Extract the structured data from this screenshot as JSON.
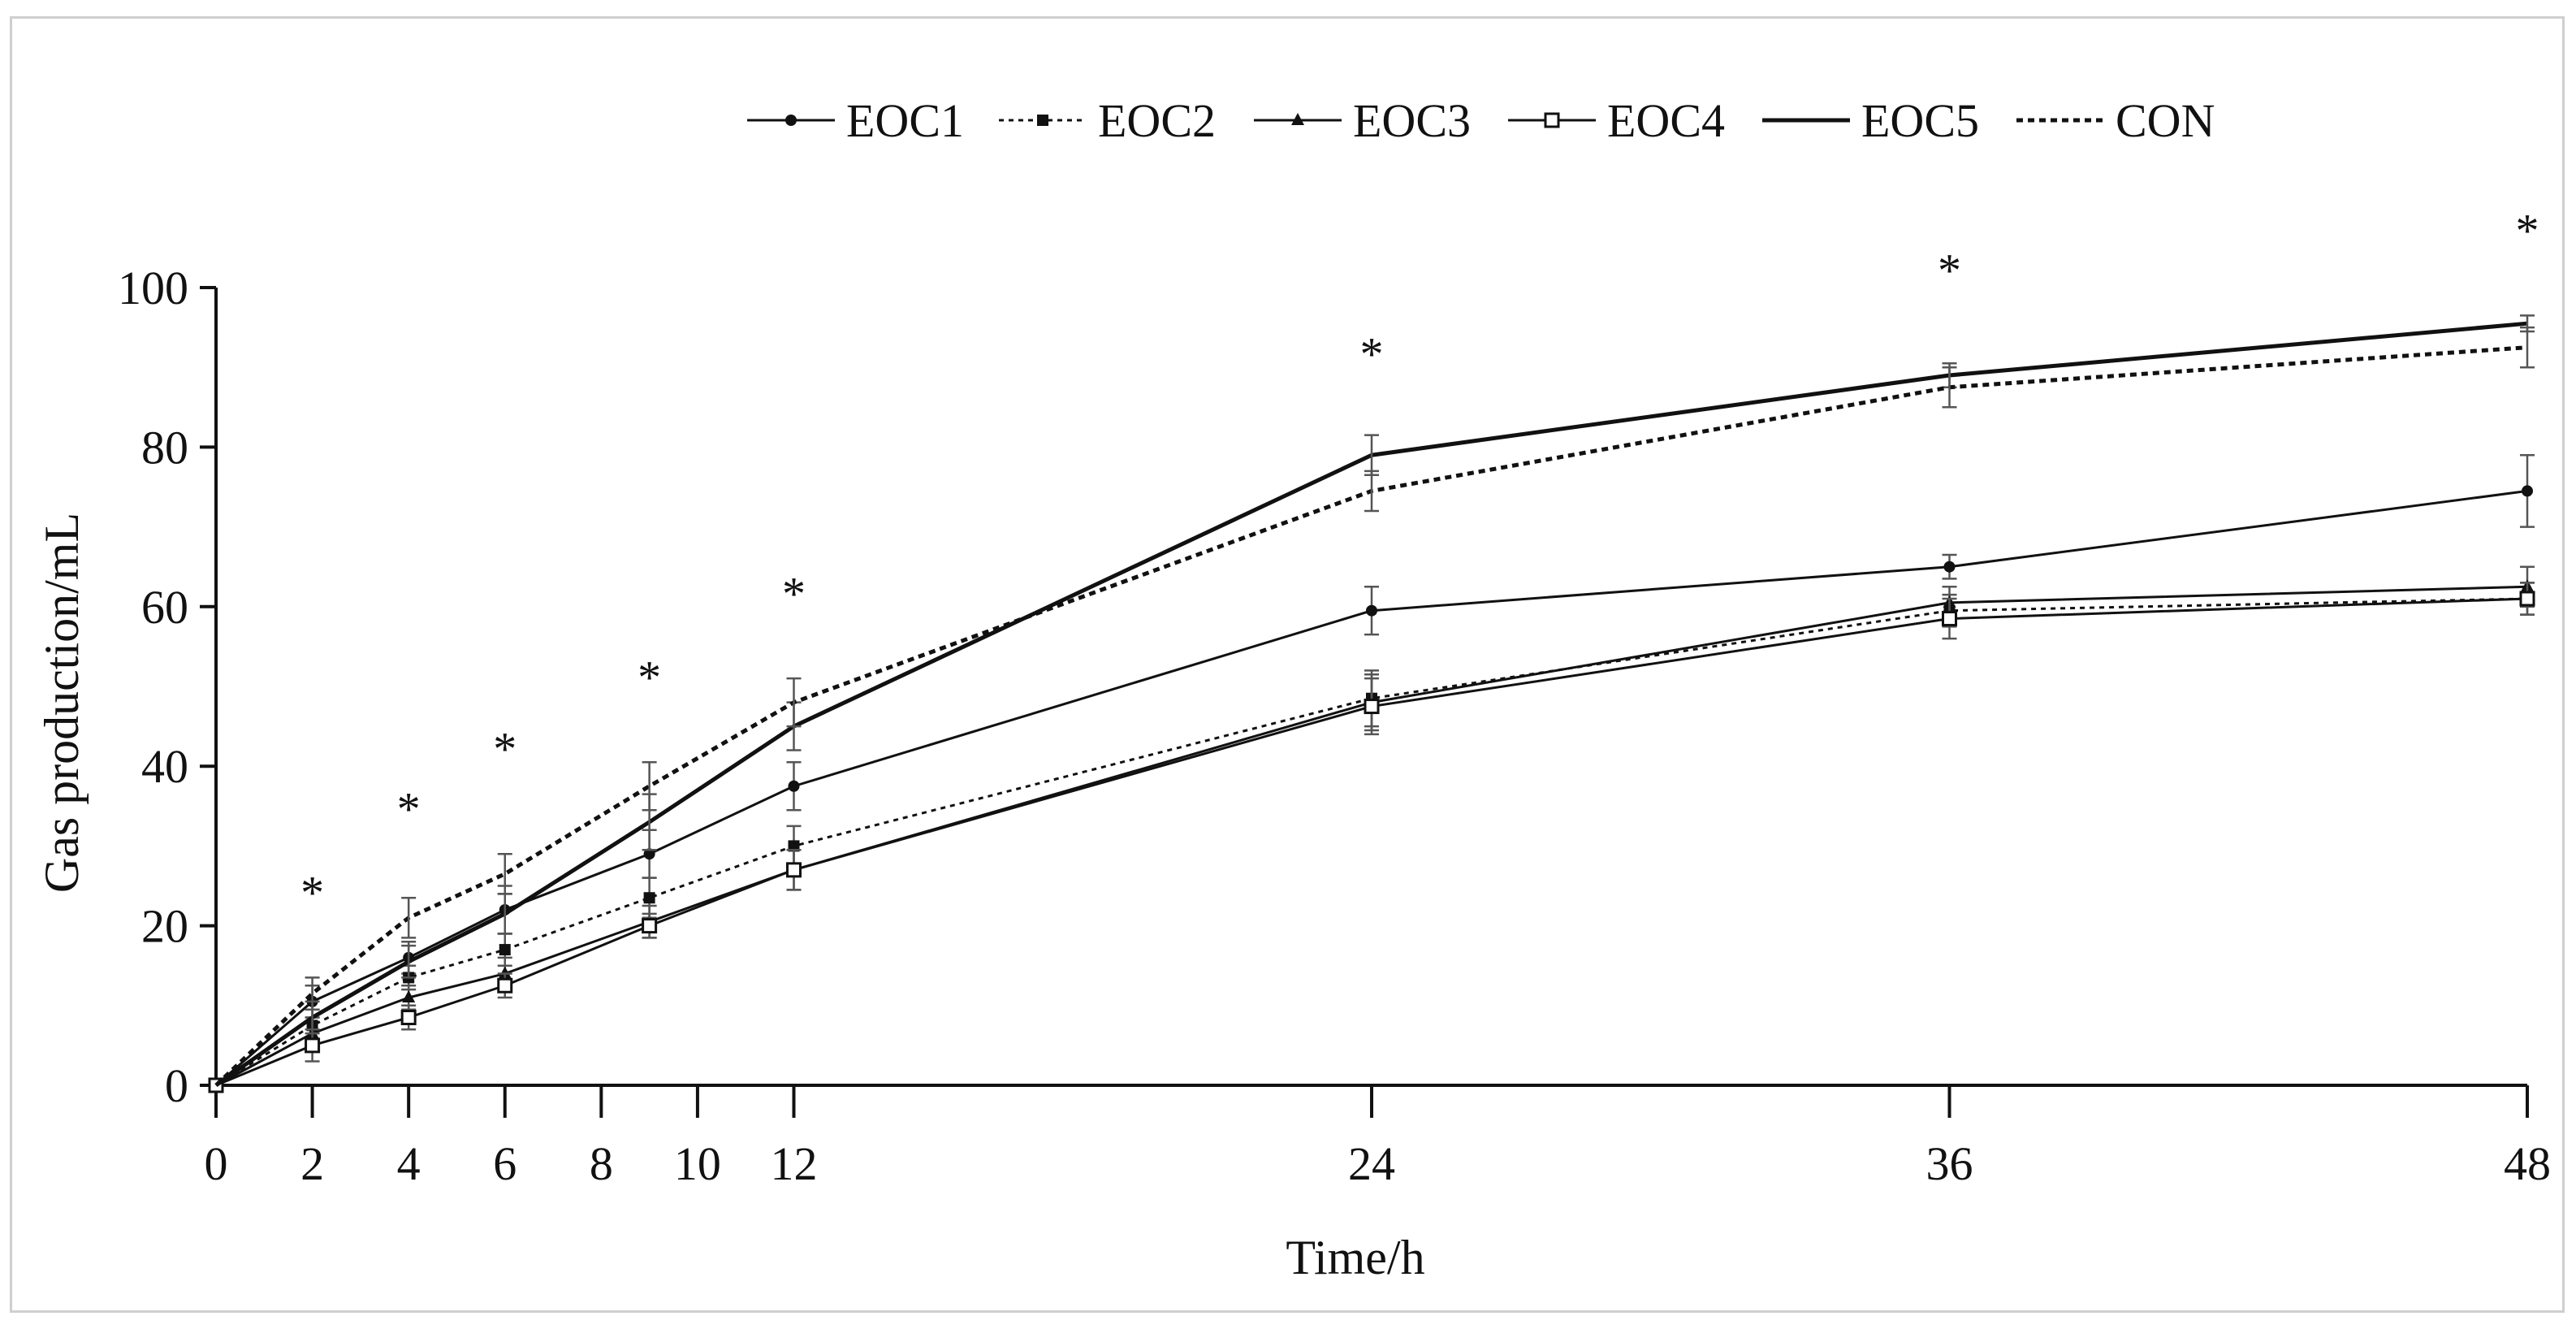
{
  "chart_data": {
    "type": "line",
    "title": "",
    "xlabel": "Time/h",
    "ylabel": "Gas production/mL",
    "xlim": [
      0,
      48
    ],
    "ylim": [
      0,
      100
    ],
    "x_ticks": [
      0,
      2,
      4,
      6,
      8,
      10,
      12,
      24,
      36,
      48
    ],
    "y_ticks": [
      0,
      20,
      40,
      60,
      80,
      100
    ],
    "legend_position": "top",
    "grid": false,
    "x": [
      0,
      2,
      4,
      6,
      9,
      12,
      24,
      36,
      48
    ],
    "series": [
      {
        "name": "EOC1",
        "values": [
          0,
          10.5,
          16.0,
          22.0,
          29.0,
          37.5,
          59.5,
          65.0,
          74.5
        ],
        "errors": [
          0,
          2,
          2,
          3,
          3,
          3,
          3,
          1.5,
          4.5
        ],
        "line": "solid",
        "marker": "circle"
      },
      {
        "name": "EOC2",
        "values": [
          0,
          7.5,
          13.5,
          17.0,
          23.5,
          30.0,
          48.5,
          59.5,
          61.0
        ],
        "errors": [
          0,
          2,
          1.5,
          2,
          2.5,
          2.5,
          3.5,
          2,
          2
        ],
        "line": "dotted",
        "marker": "square-filled"
      },
      {
        "name": "EOC3",
        "values": [
          0,
          6.5,
          11.0,
          14.0,
          20.5,
          27.0,
          48.0,
          60.5,
          62.5
        ],
        "errors": [
          0,
          2,
          1.5,
          2,
          2,
          2.5,
          3.5,
          2,
          2.5
        ],
        "line": "solid",
        "marker": "triangle"
      },
      {
        "name": "EOC4",
        "values": [
          0,
          5.0,
          8.5,
          12.5,
          20.0,
          27.0,
          47.5,
          58.5,
          61.0
        ],
        "errors": [
          0,
          2,
          1.5,
          1.5,
          1.5,
          2.5,
          3.5,
          2.5,
          2
        ],
        "line": "solid",
        "marker": "square-open"
      },
      {
        "name": "EOC5",
        "values": [
          0,
          8.5,
          15.5,
          21.5,
          33.0,
          45.0,
          79.0,
          89.0,
          95.5
        ],
        "errors": [
          0,
          2,
          2,
          2.5,
          3.5,
          3,
          2.5,
          1.5,
          1
        ],
        "line": "solid-thick",
        "marker": "none"
      },
      {
        "name": "CON",
        "values": [
          0,
          11.5,
          21.0,
          26.5,
          37.5,
          48.0,
          74.5,
          87.5,
          92.5
        ],
        "errors": [
          0,
          2,
          2.5,
          2.5,
          3,
          3,
          2.5,
          2.5,
          2.5
        ],
        "line": "dotted-thick",
        "marker": "none"
      }
    ],
    "annotations": [
      {
        "text": "*",
        "x": 2,
        "y": 25
      },
      {
        "text": "*",
        "x": 4,
        "y": 35.5
      },
      {
        "text": "*",
        "x": 6,
        "y": 43
      },
      {
        "text": "*",
        "x": 9,
        "y": 52
      },
      {
        "text": "*",
        "x": 12,
        "y": 62.5
      },
      {
        "text": "*",
        "x": 24,
        "y": 92.5
      },
      {
        "text": "*",
        "x": 36,
        "y": 103
      },
      {
        "text": "*",
        "x": 48,
        "y": 108
      }
    ]
  }
}
